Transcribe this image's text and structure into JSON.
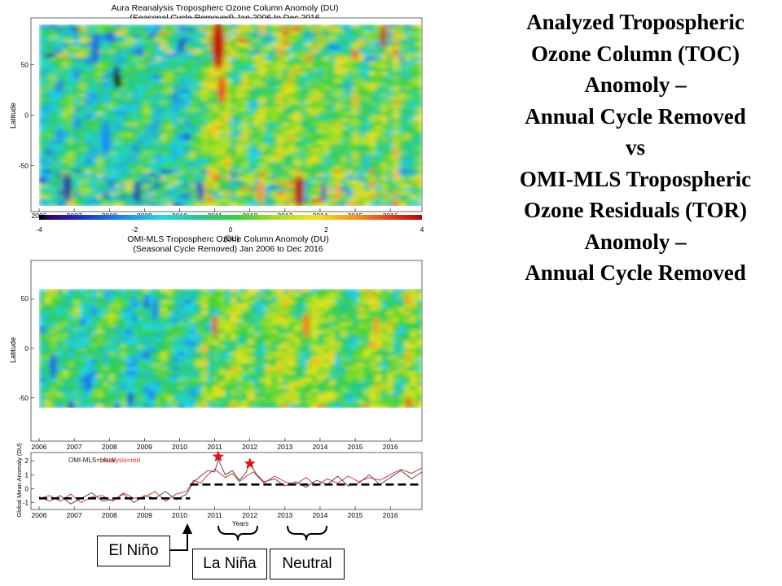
{
  "slide": {
    "title_lines": [
      "Analyzed Tropospheric",
      "Ozone Column (TOC)",
      "Anomoly –",
      "Annual Cycle Removed",
      "vs",
      "OMI-MLS Tropospheric",
      "Ozone Residuals (TOR)",
      "Anomoly –",
      "Annual Cycle Removed"
    ]
  },
  "annotations": {
    "el_nino": "El Niño",
    "la_nina": "La Niña",
    "neutral": "Neutral"
  },
  "colors": {
    "analysis_line": "#e02020",
    "omi_line": "#404040",
    "star": "#e81010",
    "mean_dash": "#000000"
  },
  "chart_data": [
    {
      "type": "heatmap",
      "title": "Aura Reanalysis  Tropospherc Ozone Column Anomoly (DU)",
      "subtitle": "(Seasonal Cycle Removed)     Jan 2006 to Dec 2016",
      "xlabel": "",
      "ylabel": "Latitude",
      "x_ticks": [
        "2006",
        "2007",
        "2008",
        "2009",
        "2010",
        "2011",
        "2012",
        "2013",
        "2014",
        "2015",
        "2016"
      ],
      "y_ticks": [
        50,
        0,
        -50
      ],
      "xlim": [
        2006,
        2016.9
      ],
      "ylim": [
        -90,
        90
      ],
      "colorbar": {
        "ticks": [
          "-4",
          "-2",
          "0",
          "2",
          "4"
        ],
        "unit": "(DU)",
        "range": [
          -4,
          4
        ]
      }
    },
    {
      "type": "heatmap",
      "title": "OMI-MLS  Tropospherc Ozone Column Anomoly (DU)",
      "subtitle": "(Seasonal Cycle Removed)     Jan 2006 to Dec 2016",
      "xlabel": "",
      "ylabel": "Latitude",
      "x_ticks": [
        "2006",
        "2007",
        "2008",
        "2009",
        "2010",
        "2011",
        "2012",
        "2013",
        "2014",
        "2015",
        "2016"
      ],
      "y_ticks": [
        50,
        0,
        -50
      ],
      "xlim": [
        2006,
        2016.9
      ],
      "ylim": [
        -90,
        90
      ],
      "data_lat_range": [
        -60,
        60
      ]
    },
    {
      "type": "line",
      "title": "",
      "xlabel": "Years",
      "ylabel": "Global Mean Anomaly (DU)",
      "x_ticks": [
        "2006",
        "2007",
        "2008",
        "2009",
        "2010",
        "2011",
        "2012",
        "2013",
        "2014",
        "2015",
        "2016"
      ],
      "y_ticks": [
        "2",
        "1",
        "0",
        "-1"
      ],
      "xlim": [
        2006,
        2016.9
      ],
      "ylim": [
        -1.5,
        2.6
      ],
      "legend": {
        "text_a": "OMI-MLS=black",
        "text_b": "Analysis=red",
        "placement": "top-left"
      },
      "series": [
        {
          "x": [
            2006.0,
            2006.3,
            2006.6,
            2006.9,
            2007.2,
            2007.5,
            2007.8,
            2008.1,
            2008.4,
            2008.7,
            2009.0,
            2009.3,
            2009.6,
            2009.9,
            2010.2,
            2010.4,
            2010.6,
            2010.8,
            2011.0,
            2011.1,
            2011.3,
            2011.5,
            2011.7,
            2011.9,
            2012.0,
            2012.2,
            2012.4,
            2012.7,
            2013.0,
            2013.3,
            2013.6,
            2013.9,
            2014.2,
            2014.5,
            2014.8,
            2015.1,
            2015.4,
            2015.7,
            2016.0,
            2016.3,
            2016.6,
            2016.9
          ],
          "values": [
            -0.6,
            -0.9,
            -0.5,
            -1.1,
            -0.7,
            -0.3,
            -0.9,
            -0.8,
            -0.4,
            -1.0,
            -0.5,
            -0.7,
            -0.2,
            -0.8,
            -0.4,
            0.5,
            0.9,
            1.3,
            1.2,
            2.1,
            1.0,
            1.3,
            0.6,
            1.2,
            1.8,
            1.0,
            0.5,
            0.7,
            0.2,
            0.5,
            0.1,
            0.6,
            0.3,
            0.9,
            0.2,
            0.4,
            1.0,
            0.3,
            0.8,
            1.3,
            0.7,
            1.2
          ]
        },
        {
          "x": [
            2006.0,
            2006.3,
            2006.6,
            2006.9,
            2007.2,
            2007.5,
            2007.8,
            2008.1,
            2008.4,
            2008.7,
            2009.0,
            2009.3,
            2009.6,
            2009.9,
            2010.2,
            2010.4,
            2010.6,
            2010.8,
            2011.0,
            2011.3,
            2011.5,
            2011.7,
            2011.9,
            2012.1,
            2012.4,
            2012.7,
            2013.0,
            2013.3,
            2013.6,
            2013.9,
            2014.2,
            2014.5,
            2014.8,
            2015.1,
            2015.4,
            2015.7,
            2016.0,
            2016.3,
            2016.6,
            2016.9
          ],
          "values": [
            -0.7,
            -0.5,
            -0.9,
            -0.4,
            -1.0,
            -0.6,
            -0.5,
            -0.9,
            -0.3,
            -0.7,
            -0.6,
            -0.2,
            -0.9,
            -0.4,
            -0.2,
            0.6,
            0.4,
            1.0,
            1.4,
            0.8,
            1.1,
            0.5,
            0.9,
            1.2,
            0.4,
            0.9,
            0.5,
            0.3,
            0.8,
            0.2,
            0.7,
            0.4,
            0.9,
            0.5,
            0.8,
            0.6,
            1.0,
            1.4,
            1.1,
            1.5
          ]
        }
      ],
      "mean_levels": [
        {
          "x_range": [
            2006,
            2010.3
          ],
          "value": -0.7
        },
        {
          "x_range": [
            2010.3,
            2016.9
          ],
          "value": 0.3
        }
      ],
      "stars": [
        {
          "x": 2011.1,
          "value": 2.3
        },
        {
          "x": 2012.0,
          "value": 1.8
        }
      ]
    }
  ]
}
